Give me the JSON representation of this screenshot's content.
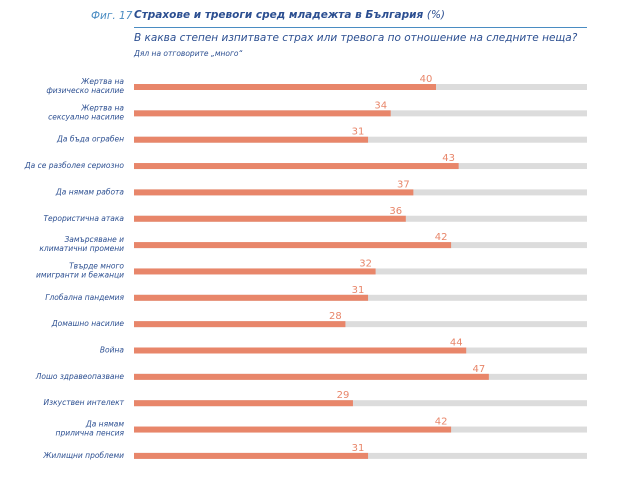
{
  "header": {
    "figure_label": "Фиг. 17",
    "title": "Страхове и тревоги сред младежта в България",
    "title_unit": "(%)",
    "subtitle": "В каква степен изпитвате страх или тревога по отношение на следните неща?",
    "note": "Дял на отговорите „много“"
  },
  "chart_data": {
    "type": "bar",
    "orientation": "horizontal",
    "categories": [
      [
        "Жертва на",
        "физическо насилие"
      ],
      [
        "Жертва на",
        "сексуално насилие"
      ],
      [
        "Да бъда ограбен"
      ],
      [
        "Да се разболея сериозно"
      ],
      [
        "Да нямам работа"
      ],
      [
        "Терористична атака"
      ],
      [
        "Замърсяване и",
        "климатични промени"
      ],
      [
        "Твърде много",
        "имигранти и бежанци"
      ],
      [
        "Глобална пандемия"
      ],
      [
        "Домашно насилие"
      ],
      [
        "Война"
      ],
      [
        "Лошо здравеопазване"
      ],
      [
        "Изкуствен интелект"
      ],
      [
        "Да нямам",
        "прилична пенсия"
      ],
      [
        "Жилищни проблеми"
      ]
    ],
    "values": [
      40,
      34,
      31,
      43,
      37,
      36,
      42,
      32,
      31,
      28,
      44,
      47,
      29,
      42,
      31
    ],
    "xlim": [
      0,
      60
    ],
    "colors": {
      "bar": "#e8866a",
      "track": "#dcdcdc",
      "label": "#2c4f91",
      "value": "#e8866a"
    }
  }
}
